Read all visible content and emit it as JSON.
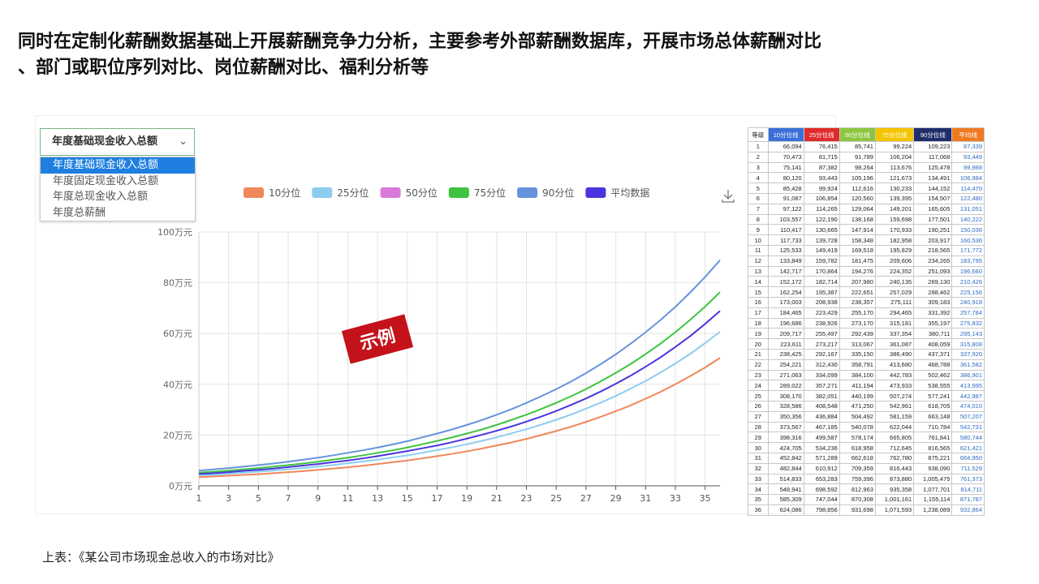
{
  "header": {
    "title_lines": [
      "同时在定制化薪酬数据基础上开展薪酬竞争力分析，主要参考外部薪酬数据库，开展市场总体薪酬对比",
      "、部门或职位序列对比、岗位薪酬对比、福利分析等"
    ]
  },
  "dropdown": {
    "selected": "年度基础现金收入总额",
    "options": [
      "年度基础现金收入总额",
      "年度固定现金收入总额",
      "年度总现金收入总额",
      "年度总薪酬"
    ]
  },
  "chart_data": {
    "type": "line",
    "annotation": "示例",
    "grid": true,
    "x": [
      1,
      2,
      3,
      4,
      5,
      6,
      7,
      8,
      9,
      10,
      11,
      12,
      13,
      14,
      15,
      16,
      17,
      18,
      19,
      20,
      21,
      22,
      23,
      24,
      25,
      26,
      27,
      28,
      29,
      30,
      31,
      32,
      33,
      34,
      35,
      36
    ],
    "xlim": [
      1,
      36
    ],
    "xticks": [
      1,
      3,
      5,
      7,
      9,
      11,
      13,
      15,
      17,
      19,
      21,
      23,
      25,
      27,
      29,
      31,
      33,
      35
    ],
    "ylim": [
      0,
      100
    ],
    "yticks": [
      {
        "value": 0,
        "label": "0万元"
      },
      {
        "value": 20,
        "label": "20万元"
      },
      {
        "value": 40,
        "label": "40万元"
      },
      {
        "value": 60,
        "label": "60万元"
      },
      {
        "value": 80,
        "label": "80万元"
      },
      {
        "value": 100,
        "label": "100万元"
      }
    ],
    "series": [
      {
        "name": "10分位",
        "color": "#f0875a",
        "values": [
          3.4,
          3.7,
          4.0,
          4.3,
          4.6,
          5.0,
          5.4,
          5.8,
          6.3,
          6.8,
          7.3,
          7.9,
          8.6,
          9.3,
          10.0,
          10.8,
          11.7,
          12.6,
          13.6,
          14.7,
          15.9,
          17.1,
          18.5,
          20.0,
          21.6,
          23.3,
          25.2,
          27.2,
          29.4,
          31.7,
          34.3,
          37.0,
          40.0,
          43.2,
          46.6,
          50.4
        ]
      },
      {
        "name": "25分位",
        "color": "#8dcdf0",
        "values": [
          4.1,
          4.4,
          4.8,
          5.2,
          5.6,
          6.0,
          6.5,
          7.0,
          7.6,
          8.2,
          8.9,
          9.6,
          10.3,
          11.2,
          12.0,
          13.0,
          14.1,
          15.2,
          16.4,
          17.7,
          19.1,
          20.7,
          22.3,
          24.1,
          26.0,
          28.1,
          30.4,
          32.8,
          35.4,
          38.3,
          41.3,
          44.6,
          48.2,
          52.0,
          56.2,
          60.7
        ]
      },
      {
        "name": "50分位",
        "color": "#d77ad8",
        "values": [
          null,
          null,
          null,
          null,
          null,
          null,
          null,
          null,
          null,
          null,
          null,
          null,
          null,
          null,
          null,
          null,
          null,
          null,
          null,
          null,
          null,
          null,
          null,
          null,
          null,
          null,
          null,
          null,
          null,
          null,
          null,
          null,
          null,
          null,
          null,
          null
        ]
      },
      {
        "name": "75分位",
        "color": "#3ec43e",
        "values": [
          5.2,
          5.6,
          6.0,
          6.5,
          7.0,
          7.6,
          8.2,
          8.8,
          9.5,
          10.3,
          11.1,
          12.0,
          13.0,
          14.0,
          15.1,
          16.4,
          17.7,
          19.1,
          20.6,
          22.2,
          24.0,
          26.0,
          28.0,
          30.3,
          32.7,
          35.3,
          38.1,
          41.2,
          44.5,
          48.0,
          51.9,
          56.0,
          60.5,
          65.4,
          70.6,
          76.3
        ]
      },
      {
        "name": "90分位",
        "color": "#6693dc",
        "values": [
          6.0,
          6.5,
          7.0,
          7.6,
          8.2,
          8.8,
          9.5,
          10.3,
          11.1,
          12.0,
          13.0,
          14.0,
          15.1,
          16.3,
          17.6,
          19.1,
          20.6,
          22.2,
          24.0,
          25.9,
          28.0,
          30.2,
          32.7,
          35.3,
          38.1,
          41.1,
          44.4,
          48.0,
          51.8,
          56.0,
          60.5,
          65.3,
          70.5,
          76.2,
          82.3,
          88.9
        ]
      },
      {
        "name": "平均数据",
        "color": "#4a35e0",
        "values": [
          4.7,
          5.0,
          5.4,
          5.9,
          6.3,
          6.8,
          7.4,
          8.0,
          8.6,
          9.3,
          10.0,
          10.8,
          11.7,
          12.7,
          13.7,
          14.8,
          15.9,
          17.2,
          18.6,
          20.1,
          21.7,
          23.4,
          25.3,
          27.3,
          29.5,
          31.9,
          34.4,
          37.2,
          40.2,
          43.4,
          46.9,
          50.6,
          54.7,
          59.0,
          63.8,
          68.9
        ]
      }
    ]
  },
  "table": {
    "columns": [
      "等级",
      "10分位线",
      "25分位线",
      "50分位线",
      "75分位线",
      "90分位线",
      "平均线"
    ],
    "header_colors": [
      "#ffffff",
      "#3a6fd8",
      "#e02b2b",
      "#8cc63f",
      "#f5c400",
      "#1f2d6b",
      "#f07a22"
    ],
    "rows": [
      [
        "1",
        "66,094",
        "76,415",
        "85,741",
        "99,224",
        "109,223",
        "87,339"
      ],
      [
        "2",
        "70,473",
        "81,715",
        "91,789",
        "106,204",
        "117,068",
        "93,449"
      ],
      [
        "3",
        "75,141",
        "87,382",
        "98,264",
        "113,676",
        "125,478",
        "99,988"
      ],
      [
        "4",
        "80,120",
        "93,443",
        "105,196",
        "121,673",
        "134,491",
        "106,984"
      ],
      [
        "5",
        "85,428",
        "99,924",
        "112,616",
        "130,233",
        "144,152",
        "114,470"
      ],
      [
        "6",
        "91,087",
        "106,854",
        "120,560",
        "139,395",
        "154,507",
        "122,480"
      ],
      [
        "7",
        "97,122",
        "114,265",
        "129,064",
        "149,201",
        "165,605",
        "131,051"
      ],
      [
        "8",
        "103,557",
        "122,190",
        "138,168",
        "159,698",
        "177,501",
        "140,222"
      ],
      [
        "9",
        "110,417",
        "130,665",
        "147,914",
        "170,933",
        "190,251",
        "150,036"
      ],
      [
        "10",
        "117,733",
        "139,728",
        "158,348",
        "182,958",
        "203,917",
        "160,536"
      ],
      [
        "11",
        "125,533",
        "149,419",
        "169,518",
        "195,829",
        "218,565",
        "171,772"
      ],
      [
        "12",
        "133,849",
        "159,782",
        "181,475",
        "209,606",
        "234,265",
        "183,795"
      ],
      [
        "13",
        "142,717",
        "170,864",
        "194,276",
        "224,352",
        "251,093",
        "196,660"
      ],
      [
        "14",
        "152,172",
        "182,714",
        "207,980",
        "240,135",
        "269,130",
        "210,426"
      ],
      [
        "15",
        "162,254",
        "195,387",
        "222,651",
        "257,029",
        "288,462",
        "225,156"
      ],
      [
        "16",
        "173,003",
        "208,938",
        "238,357",
        "275,111",
        "309,183",
        "240,918"
      ],
      [
        "17",
        "184,465",
        "223,429",
        "255,170",
        "294,465",
        "331,392",
        "257,784"
      ],
      [
        "18",
        "196,686",
        "238,926",
        "273,170",
        "315,181",
        "355,197",
        "275,832"
      ],
      [
        "19",
        "209,717",
        "255,497",
        "292,439",
        "337,354",
        "380,711",
        "295,143"
      ],
      [
        "20",
        "223,611",
        "273,217",
        "313,067",
        "361,087",
        "408,059",
        "315,808"
      ],
      [
        "21",
        "238,425",
        "292,167",
        "335,150",
        "386,490",
        "437,371",
        "337,920"
      ],
      [
        "22",
        "254,221",
        "312,430",
        "358,791",
        "413,680",
        "468,788",
        "361,582"
      ],
      [
        "23",
        "271,063",
        "334,099",
        "384,100",
        "442,783",
        "502,462",
        "386,901"
      ],
      [
        "24",
        "289,022",
        "357,271",
        "411,194",
        "473,933",
        "538,555",
        "413,995"
      ],
      [
        "25",
        "308,170",
        "382,051",
        "440,199",
        "507,274",
        "577,241",
        "442,987"
      ],
      [
        "26",
        "328,586",
        "408,548",
        "471,250",
        "542,961",
        "618,705",
        "474,010"
      ],
      [
        "27",
        "350,356",
        "436,884",
        "504,492",
        "581,159",
        "663,148",
        "507,207"
      ],
      [
        "28",
        "373,567",
        "467,185",
        "540,078",
        "622,044",
        "710,784",
        "542,731"
      ],
      [
        "29",
        "398,316",
        "499,587",
        "578,174",
        "665,805",
        "761,841",
        "580,744"
      ],
      [
        "30",
        "424,705",
        "534,236",
        "618,958",
        "712,645",
        "816,565",
        "621,421"
      ],
      [
        "31",
        "452,842",
        "571,289",
        "662,618",
        "762,780",
        "875,221",
        "664,950"
      ],
      [
        "32",
        "482,844",
        "610,912",
        "709,359",
        "816,443",
        "938,090",
        "711,529"
      ],
      [
        "33",
        "514,833",
        "653,283",
        "759,396",
        "873,880",
        "1,005,475",
        "761,373"
      ],
      [
        "34",
        "548,941",
        "698,592",
        "812,963",
        "935,358",
        "1,077,701",
        "814,711"
      ],
      [
        "35",
        "585,309",
        "747,044",
        "870,308",
        "1,001,161",
        "1,155,114",
        "871,787"
      ],
      [
        "36",
        "624,086",
        "798,856",
        "931,698",
        "1,071,593",
        "1,238,089",
        "932,864"
      ]
    ]
  },
  "caption": "上表：《某公司市场现金总收入的市场对比》"
}
